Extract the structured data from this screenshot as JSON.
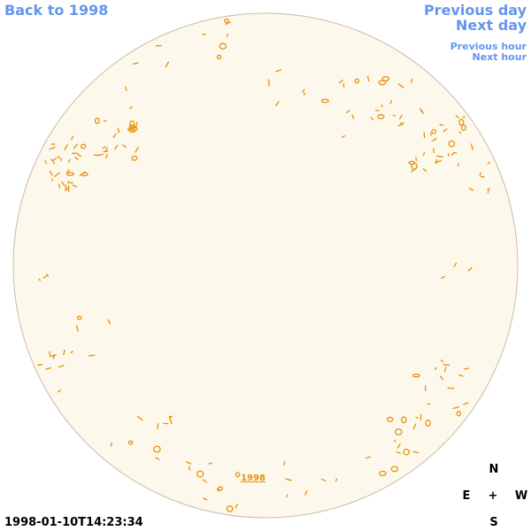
{
  "links": {
    "back": "Back to 1998",
    "previous_day": "Previous day",
    "next_day": "Next day",
    "previous_hour": "Previous hour",
    "next_hour": "Next hour"
  },
  "disk_label": "1998",
  "compass": {
    "north": "N",
    "east": "E",
    "center": "+",
    "west": "W",
    "south": "S"
  },
  "timestamp": "1998-01-10T14:23:34"
}
